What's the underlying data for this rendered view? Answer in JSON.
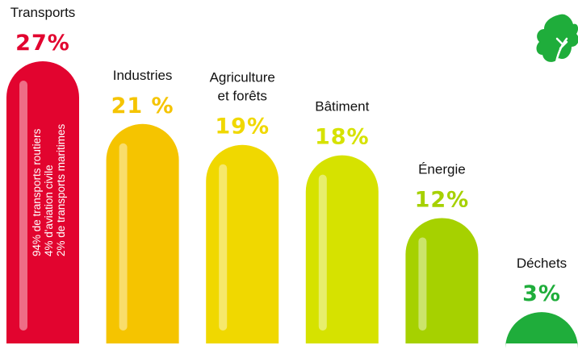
{
  "chart_data": {
    "type": "bar",
    "categories": [
      "Transports",
      "Industries",
      "Agriculture et forêts",
      "Bâtiment",
      "Énergie",
      "Déchets"
    ],
    "category_lines": [
      [
        "Transports"
      ],
      [
        "Industries"
      ],
      [
        "Agriculture",
        "et forêts"
      ],
      [
        "Bâtiment"
      ],
      [
        "Énergie"
      ],
      [
        "Déchets"
      ]
    ],
    "values": [
      27,
      21,
      19,
      18,
      12,
      3
    ],
    "value_labels": [
      "27%",
      "21 %",
      "19%",
      "18%",
      "12%",
      "3%"
    ],
    "colors": [
      "#e2042f",
      "#f5c400",
      "#f0d800",
      "#d6e200",
      "#a6d100",
      "#1fad3b"
    ],
    "annotation_lines": [
      "94% de transports routiers",
      "4% d'aviation civile",
      "2% de transports maritimes"
    ],
    "logo_icon": "leaf-logo-icon",
    "logo_color": "#1fad3b",
    "title": "",
    "xlabel": "",
    "ylabel": ""
  }
}
